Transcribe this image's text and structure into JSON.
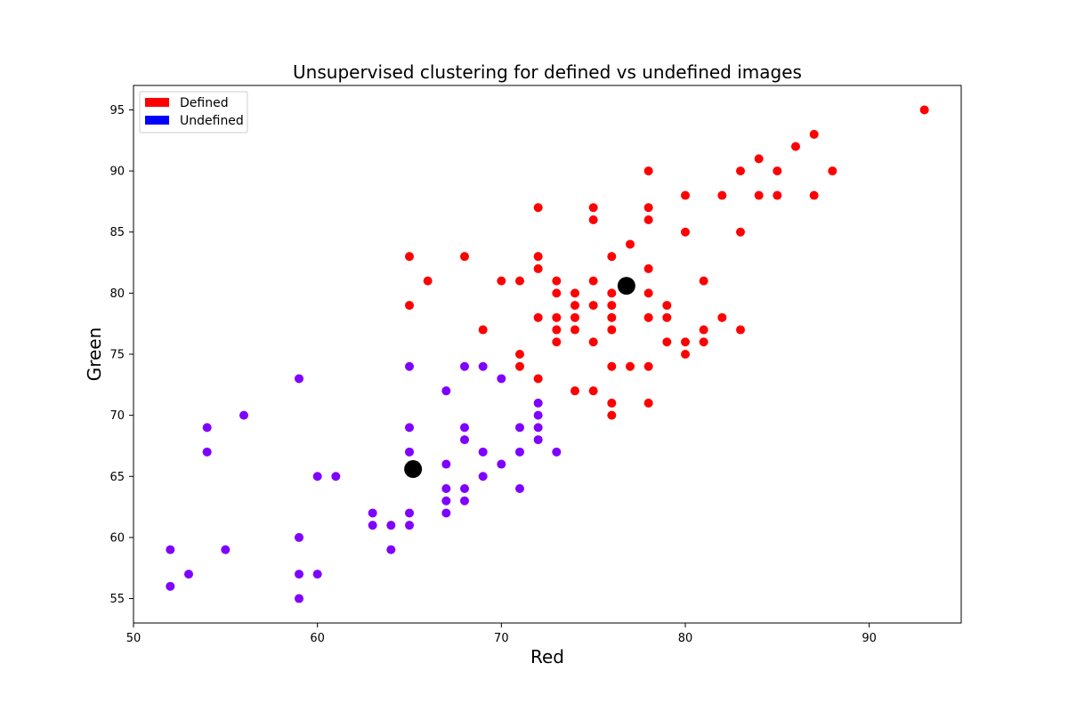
{
  "chart_data": {
    "type": "scatter",
    "title": "Unsupervised clustering for defined vs undefined images",
    "xlabel": "Red",
    "ylabel": "Green",
    "xlim": [
      50,
      95
    ],
    "ylim": [
      53,
      97
    ],
    "xticks": [
      50,
      60,
      70,
      80,
      90
    ],
    "yticks": [
      55,
      60,
      65,
      70,
      75,
      80,
      85,
      90,
      95
    ],
    "grid": false,
    "legend_position": "top-left",
    "legend": [
      {
        "label": "Defined",
        "color": "#ff0000"
      },
      {
        "label": "Undefined",
        "color": "#0000ff"
      }
    ],
    "series": [
      {
        "color": "#ff0000",
        "points": [
          [
            93,
            95
          ],
          [
            87,
            93
          ],
          [
            86,
            92
          ],
          [
            84,
            91
          ],
          [
            78,
            90
          ],
          [
            83,
            90
          ],
          [
            85,
            90
          ],
          [
            88,
            90
          ],
          [
            80,
            88
          ],
          [
            82,
            88
          ],
          [
            84,
            88
          ],
          [
            85,
            88
          ],
          [
            87,
            88
          ],
          [
            72,
            87
          ],
          [
            75,
            87
          ],
          [
            78,
            87
          ],
          [
            75,
            86
          ],
          [
            78,
            86
          ],
          [
            80,
            85
          ],
          [
            83,
            85
          ],
          [
            77,
            84
          ],
          [
            65,
            83
          ],
          [
            68,
            83
          ],
          [
            72,
            83
          ],
          [
            76,
            83
          ],
          [
            72,
            82
          ],
          [
            78,
            82
          ],
          [
            66,
            81
          ],
          [
            70,
            81
          ],
          [
            71,
            81
          ],
          [
            73,
            81
          ],
          [
            75,
            81
          ],
          [
            81,
            81
          ],
          [
            73,
            80
          ],
          [
            74,
            80
          ],
          [
            76,
            80
          ],
          [
            78,
            80
          ],
          [
            65,
            79
          ],
          [
            74,
            79
          ],
          [
            75,
            79
          ],
          [
            76,
            79
          ],
          [
            79,
            79
          ],
          [
            72,
            78
          ],
          [
            73,
            78
          ],
          [
            74,
            78
          ],
          [
            76,
            78
          ],
          [
            78,
            78
          ],
          [
            79,
            78
          ],
          [
            82,
            78
          ],
          [
            69,
            77
          ],
          [
            73,
            77
          ],
          [
            74,
            77
          ],
          [
            76,
            77
          ],
          [
            81,
            77
          ],
          [
            83,
            77
          ],
          [
            73,
            76
          ],
          [
            75,
            76
          ],
          [
            79,
            76
          ],
          [
            80,
            76
          ],
          [
            81,
            76
          ],
          [
            71,
            75
          ],
          [
            80,
            75
          ],
          [
            71,
            74
          ],
          [
            76,
            74
          ],
          [
            77,
            74
          ],
          [
            78,
            74
          ],
          [
            72,
            73
          ],
          [
            74,
            72
          ],
          [
            75,
            72
          ],
          [
            76,
            71
          ],
          [
            78,
            71
          ],
          [
            76,
            70
          ]
        ]
      },
      {
        "color": "#8000ff",
        "points": [
          [
            65,
            74
          ],
          [
            68,
            74
          ],
          [
            69,
            74
          ],
          [
            59,
            73
          ],
          [
            70,
            73
          ],
          [
            67,
            72
          ],
          [
            72,
            71
          ],
          [
            56,
            70
          ],
          [
            72,
            70
          ],
          [
            54,
            69
          ],
          [
            65,
            69
          ],
          [
            68,
            69
          ],
          [
            71,
            69
          ],
          [
            72,
            69
          ],
          [
            68,
            68
          ],
          [
            72,
            68
          ],
          [
            54,
            67
          ],
          [
            65,
            67
          ],
          [
            69,
            67
          ],
          [
            71,
            67
          ],
          [
            73,
            67
          ],
          [
            67,
            66
          ],
          [
            70,
            66
          ],
          [
            60,
            65
          ],
          [
            61,
            65
          ],
          [
            69,
            65
          ],
          [
            67,
            64
          ],
          [
            68,
            64
          ],
          [
            71,
            64
          ],
          [
            67,
            63
          ],
          [
            68,
            63
          ],
          [
            63,
            62
          ],
          [
            65,
            62
          ],
          [
            67,
            62
          ],
          [
            63,
            61
          ],
          [
            64,
            61
          ],
          [
            65,
            61
          ],
          [
            59,
            60
          ],
          [
            52,
            59
          ],
          [
            55,
            59
          ],
          [
            64,
            59
          ],
          [
            53,
            57
          ],
          [
            59,
            57
          ],
          [
            60,
            57
          ],
          [
            52,
            56
          ],
          [
            59,
            55
          ]
        ]
      },
      {
        "color": "#000000",
        "points": [
          [
            76.8,
            80.6
          ],
          [
            65.2,
            65.6
          ]
        ]
      }
    ]
  }
}
